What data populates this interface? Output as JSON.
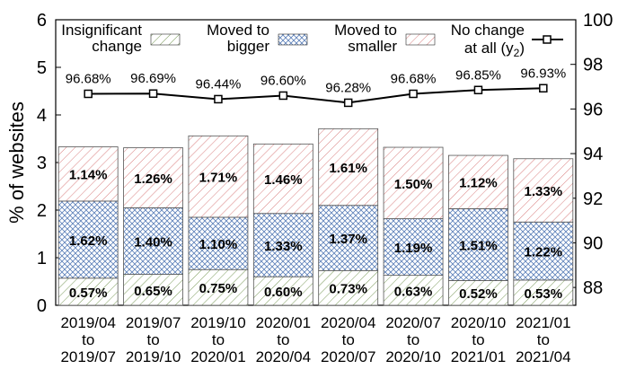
{
  "chart_data": {
    "type": "bar",
    "stacked": true,
    "ylabel": "% of websites",
    "ylim": [
      0,
      6
    ],
    "y_ticks": [
      "0",
      "1",
      "2",
      "3",
      "4",
      "5",
      "6"
    ],
    "y2lim": [
      87.2,
      100
    ],
    "y2_ticks": [
      "88",
      "90",
      "92",
      "94",
      "96",
      "98",
      "100"
    ],
    "categories": [
      [
        "2019/04",
        "to",
        "2019/07"
      ],
      [
        "2019/07",
        "to",
        "2019/10"
      ],
      [
        "2019/10",
        "to",
        "2020/01"
      ],
      [
        "2020/01",
        "to",
        "2020/04"
      ],
      [
        "2020/04",
        "to",
        "2020/07"
      ],
      [
        "2020/07",
        "to",
        "2020/10"
      ],
      [
        "2020/10",
        "to",
        "2021/01"
      ],
      [
        "2021/01",
        "to",
        "2021/04"
      ]
    ],
    "series": [
      {
        "name": "Insignificant change",
        "legend_lines": [
          "Insignificant",
          "change"
        ],
        "color": "#7a9a5a",
        "pattern": "diagonal-green",
        "values": [
          0.57,
          0.65,
          0.75,
          0.6,
          0.73,
          0.63,
          0.52,
          0.53
        ],
        "labels": [
          "0.57%",
          "0.65%",
          "0.75%",
          "0.60%",
          "0.73%",
          "0.63%",
          "0.52%",
          "0.53%"
        ]
      },
      {
        "name": "Moved to bigger",
        "legend_lines": [
          "Moved to",
          "bigger"
        ],
        "color": "#5b7fb8",
        "pattern": "crosshatch-blue",
        "values": [
          1.62,
          1.4,
          1.1,
          1.33,
          1.37,
          1.19,
          1.51,
          1.22
        ],
        "labels": [
          "1.62%",
          "1.40%",
          "1.10%",
          "1.33%",
          "1.37%",
          "1.19%",
          "1.51%",
          "1.22%"
        ]
      },
      {
        "name": "Moved to smaller",
        "legend_lines": [
          "Moved to",
          "smaller"
        ],
        "color": "#d98080",
        "pattern": "diagonal-red",
        "values": [
          1.14,
          1.26,
          1.71,
          1.46,
          1.61,
          1.5,
          1.12,
          1.33
        ],
        "labels": [
          "1.14%",
          "1.26%",
          "1.71%",
          "1.46%",
          "1.61%",
          "1.50%",
          "1.12%",
          "1.33%"
        ]
      }
    ],
    "line_series": {
      "name": "No change at all (y2)",
      "legend_line1": "No change",
      "legend_line2_main": "at all (y",
      "legend_line2_sub": "2",
      "legend_line2_end": ")",
      "axis": "y2",
      "color": "#000000",
      "values": [
        96.68,
        96.69,
        96.44,
        96.6,
        96.28,
        96.68,
        96.85,
        96.93
      ],
      "labels": [
        "96.68%",
        "96.69%",
        "96.44%",
        "96.60%",
        "96.28%",
        "96.68%",
        "96.85%",
        "96.93%"
      ]
    },
    "legend_position": "top"
  }
}
